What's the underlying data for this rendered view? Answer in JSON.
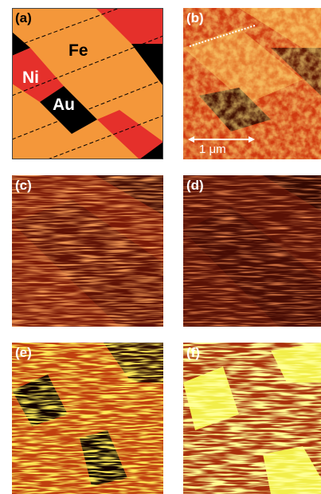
{
  "panels": [
    {
      "label": "(a)",
      "materials": [
        "Fe",
        "Ni",
        "Au"
      ]
    },
    {
      "label": "(b)",
      "scale_bar": "1 μm"
    },
    {
      "label": "(c)"
    },
    {
      "label": "(d)"
    },
    {
      "label": "(e)"
    },
    {
      "label": "(f)"
    }
  ]
}
